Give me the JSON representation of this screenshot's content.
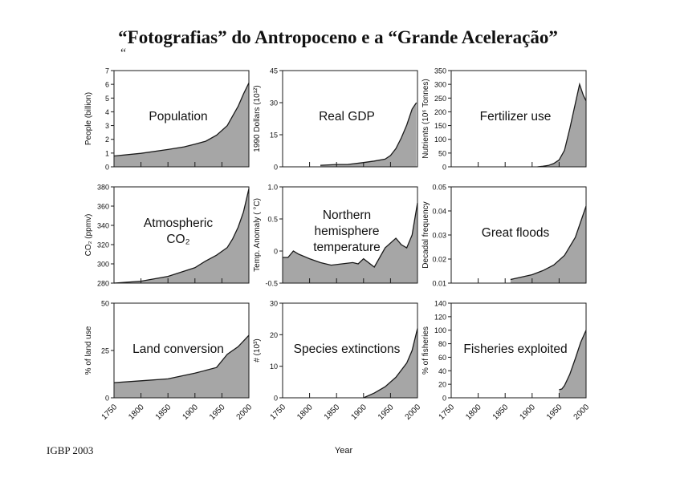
{
  "page": {
    "title": "“Fotografias” do Antropoceno e a “Grande Aceleração”",
    "title_mark": "“",
    "source": "IGBP 2003",
    "x_axis_title": "Year",
    "x_ticks": [
      "1750",
      "1800",
      "1850",
      "1900",
      "1950",
      "2000"
    ]
  },
  "colors": {
    "fill": "#a6a6a6",
    "stroke": "#1a1a1a",
    "background": "#ffffff"
  },
  "chart_data": [
    {
      "type": "area",
      "panel_label": [
        "Population"
      ],
      "ylabel": "People (billion)",
      "ylim": [
        0,
        7
      ],
      "yticks": [
        "0",
        "1",
        "2",
        "3",
        "4",
        "5",
        "6",
        "7"
      ],
      "x": [
        1750,
        1800,
        1850,
        1880,
        1900,
        1920,
        1940,
        1960,
        1970,
        1980,
        1990,
        2000
      ],
      "values": [
        0.79,
        0.98,
        1.26,
        1.45,
        1.65,
        1.86,
        2.3,
        3.0,
        3.7,
        4.4,
        5.3,
        6.1
      ]
    },
    {
      "type": "area",
      "panel_label": [
        "Real GDP"
      ],
      "ylabel": "1990 Dollars (10¹²)",
      "ylim": [
        0,
        45
      ],
      "yticks": [
        "0",
        "15",
        "30",
        "45"
      ],
      "x": [
        1820,
        1850,
        1870,
        1900,
        1920,
        1940,
        1950,
        1960,
        1970,
        1980,
        1990,
        1998
      ],
      "values": [
        0.7,
        1.1,
        1.1,
        2.0,
        2.7,
        3.6,
        5.3,
        8.5,
        13.5,
        19.5,
        27,
        30
      ]
    },
    {
      "type": "area",
      "panel_label": [
        "Fertilizer use"
      ],
      "ylabel": "Nutrients (10⁶ Tonnes)",
      "ylim": [
        0,
        350
      ],
      "yticks": [
        "0",
        "50",
        "100",
        "150",
        "200",
        "250",
        "300",
        "350"
      ],
      "x": [
        1910,
        1920,
        1930,
        1940,
        1950,
        1960,
        1970,
        1980,
        1988,
        1995,
        2000
      ],
      "values": [
        0,
        2,
        5,
        12,
        25,
        60,
        140,
        230,
        300,
        260,
        240
      ]
    },
    {
      "type": "area",
      "panel_label": [
        "Atmospheric",
        "CO₂"
      ],
      "ylabel": "CO₂ (ppmv)",
      "ylim": [
        280,
        380
      ],
      "yticks": [
        "280",
        "300",
        "320",
        "340",
        "360",
        "380"
      ],
      "x": [
        1750,
        1800,
        1850,
        1900,
        1920,
        1940,
        1960,
        1970,
        1980,
        1990,
        2000
      ],
      "values": [
        280,
        282,
        287,
        296,
        303,
        309,
        317,
        326,
        338,
        354,
        378
      ]
    },
    {
      "type": "area",
      "panel_label": [
        "Northern",
        "hemisphere",
        "temperature"
      ],
      "ylabel": "Temp. Anomaly ( °C)",
      "ylim": [
        -0.5,
        1.0
      ],
      "yticks": [
        "-0.5",
        "0",
        "0.5",
        "1.0"
      ],
      "x": [
        1750,
        1760,
        1770,
        1780,
        1800,
        1820,
        1840,
        1860,
        1880,
        1890,
        1900,
        1920,
        1940,
        1960,
        1970,
        1980,
        1990,
        2000
      ],
      "values": [
        -0.1,
        -0.1,
        0.0,
        -0.05,
        -0.12,
        -0.18,
        -0.22,
        -0.2,
        -0.18,
        -0.2,
        -0.12,
        -0.25,
        0.05,
        0.2,
        0.1,
        0.05,
        0.25,
        0.75
      ]
    },
    {
      "type": "area",
      "panel_label": [
        "Great floods"
      ],
      "ylabel": "Decadal frequency",
      "ylim": [
        0.01,
        0.05
      ],
      "yticks": [
        "0.01",
        "0.02",
        "0.03",
        "0.04",
        "0.05"
      ],
      "x": [
        1860,
        1880,
        1900,
        1920,
        1940,
        1960,
        1980,
        2000
      ],
      "values": [
        0.0115,
        0.0125,
        0.0135,
        0.0152,
        0.0175,
        0.0215,
        0.029,
        0.042
      ]
    },
    {
      "type": "area",
      "panel_label": [
        "Land conversion"
      ],
      "ylabel": "% of land use",
      "ylim": [
        0,
        50
      ],
      "yticks": [
        "0",
        "25",
        "50"
      ],
      "x": [
        1750,
        1800,
        1850,
        1900,
        1920,
        1940,
        1960,
        1980,
        2000
      ],
      "values": [
        8,
        9,
        10,
        13,
        14.5,
        16,
        23,
        27,
        33
      ]
    },
    {
      "type": "area",
      "panel_label": [
        "Species extinctions"
      ],
      "ylabel": "# (10³)",
      "ylim": [
        0,
        30
      ],
      "yticks": [
        "0",
        "10",
        "20",
        "30"
      ],
      "x": [
        1900,
        1920,
        1940,
        1960,
        1980,
        1990,
        2000
      ],
      "values": [
        0,
        1.5,
        3.5,
        6.5,
        11,
        15,
        22
      ]
    },
    {
      "type": "area",
      "panel_label": [
        "Fisheries exploited"
      ],
      "ylabel": "% of fisheries",
      "ylim": [
        0,
        140
      ],
      "yticks": [
        "0",
        "20",
        "40",
        "60",
        "80",
        "100",
        "120",
        "140"
      ],
      "x": [
        1950,
        1955,
        1960,
        1970,
        1980,
        1990,
        2000
      ],
      "values": [
        12,
        13,
        18,
        35,
        58,
        82,
        100
      ]
    }
  ]
}
